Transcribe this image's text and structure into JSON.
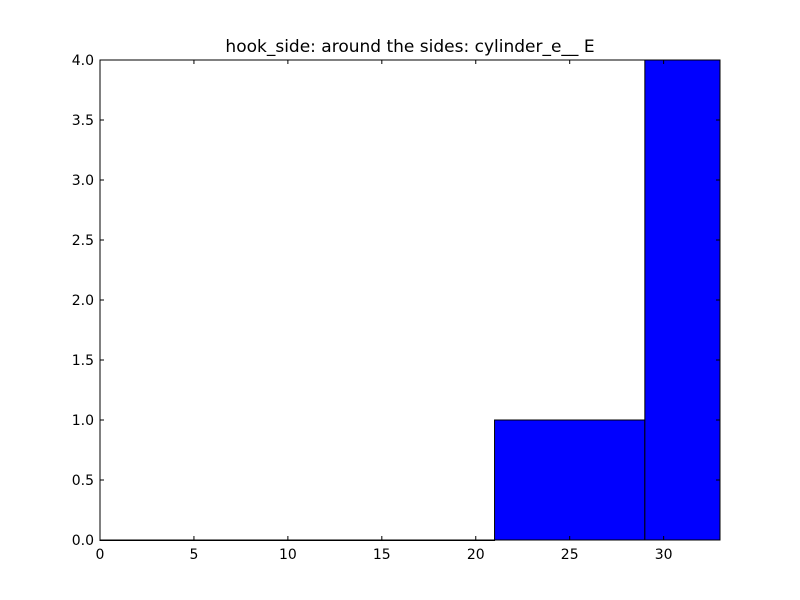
{
  "chart_data": {
    "type": "bar",
    "title": "hook_side: around the sides: cylinder_e__ E",
    "xlabel": "",
    "ylabel": "",
    "xlim": [
      0,
      33
    ],
    "ylim": [
      0,
      4.0
    ],
    "bins": [
      {
        "start": 0,
        "end": 5,
        "value": 0
      },
      {
        "start": 5,
        "end": 13,
        "value": 0
      },
      {
        "start": 13,
        "end": 21,
        "value": 0
      },
      {
        "start": 21,
        "end": 29,
        "value": 1
      },
      {
        "start": 29,
        "end": 33,
        "value": 4
      }
    ],
    "x_ticks": [
      0,
      5,
      10,
      15,
      20,
      25,
      30
    ],
    "x_tick_labels": [
      "0",
      "5",
      "10",
      "15",
      "20",
      "25",
      "30"
    ],
    "y_ticks": [
      0,
      0.5,
      1.0,
      1.5,
      2.0,
      2.5,
      3.0,
      3.5,
      4.0
    ],
    "y_tick_labels": [
      "0.0",
      "0.5",
      "1.0",
      "1.5",
      "2.0",
      "2.5",
      "3.0",
      "3.5",
      "4.0"
    ],
    "grid": false,
    "colors": {
      "bar_fill": "#0000ff",
      "bar_edge": "#000000",
      "axes": "#000000",
      "background": "#ffffff"
    }
  }
}
